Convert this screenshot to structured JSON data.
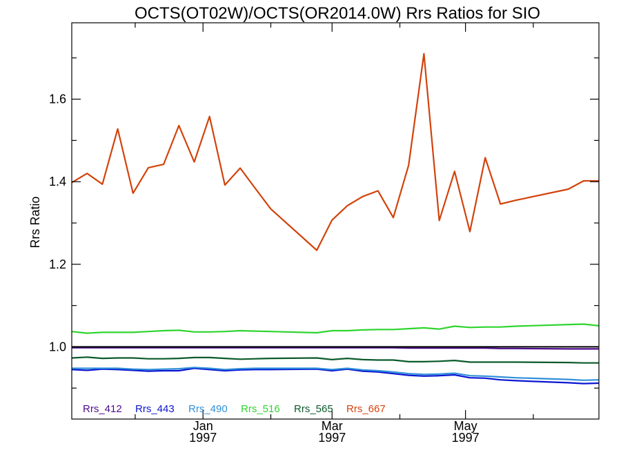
{
  "chart_data": {
    "type": "line",
    "title": "OCTS(OT02W)/OCTS(OR2014.0W)  Rrs Ratios for SIO",
    "ylabel": "Rrs Ratio",
    "xlabel": "",
    "xlim": [
      "1996-11-02",
      "1997-07-01"
    ],
    "ylim": [
      0.825,
      1.785
    ],
    "y_ticks": [
      1.0,
      1.2,
      1.4,
      1.6
    ],
    "y_tick_labels": [
      "1.0",
      "1.2",
      "1.4",
      "1.6"
    ],
    "x_ticks": [
      {
        "date": "1997-01-01",
        "month": "Jan",
        "year": "1997"
      },
      {
        "date": "1997-03-01",
        "month": "Mar",
        "year": "1997"
      },
      {
        "date": "1997-05-01",
        "month": "May",
        "year": "1997"
      }
    ],
    "x_minor_ticks": [
      "1996-12-01",
      "1997-02-01",
      "1997-04-01",
      "1997-06-01"
    ],
    "reference_line": 1.0,
    "legend_placement": "bottom-left",
    "grid": false,
    "x": [
      "1996-11-02",
      "1996-11-09",
      "1996-11-16",
      "1996-11-23",
      "1996-11-30",
      "1996-12-07",
      "1996-12-14",
      "1996-12-21",
      "1996-12-28",
      "1997-01-04",
      "1997-01-11",
      "1997-01-18",
      "1997-01-25",
      "1997-02-01",
      "1997-02-22",
      "1997-03-01",
      "1997-03-08",
      "1997-03-15",
      "1997-03-22",
      "1997-03-29",
      "1997-04-05",
      "1997-04-12",
      "1997-04-19",
      "1997-04-26",
      "1997-05-03",
      "1997-05-10",
      "1997-05-17",
      "1997-05-24",
      "1997-06-17",
      "1997-06-24",
      "1997-07-01"
    ],
    "series": [
      {
        "name": "Rrs_412",
        "color": "#4b0a8c",
        "values": [
          0.998,
          0.998,
          0.998,
          0.998,
          0.998,
          0.998,
          0.998,
          0.998,
          0.998,
          0.998,
          0.998,
          0.998,
          0.998,
          0.998,
          0.998,
          0.998,
          0.998,
          0.998,
          0.998,
          0.998,
          0.997,
          0.997,
          0.997,
          0.997,
          0.997,
          0.997,
          0.996,
          0.996,
          0.995,
          0.995,
          0.995
        ]
      },
      {
        "name": "Rrs_443",
        "color": "#0a14d2",
        "values": [
          0.945,
          0.943,
          0.946,
          0.945,
          0.943,
          0.941,
          0.942,
          0.942,
          0.948,
          0.945,
          0.942,
          0.944,
          0.945,
          0.945,
          0.946,
          0.942,
          0.946,
          0.941,
          0.939,
          0.935,
          0.931,
          0.929,
          0.93,
          0.932,
          0.925,
          0.924,
          0.92,
          0.918,
          0.913,
          0.911,
          0.912
        ]
      },
      {
        "name": "Rrs_490",
        "color": "#2f8fd8",
        "values": [
          0.948,
          0.948,
          0.948,
          0.948,
          0.946,
          0.945,
          0.946,
          0.947,
          0.95,
          0.948,
          0.945,
          0.947,
          0.948,
          0.948,
          0.948,
          0.945,
          0.948,
          0.944,
          0.942,
          0.939,
          0.935,
          0.933,
          0.934,
          0.936,
          0.93,
          0.929,
          0.927,
          0.925,
          0.921,
          0.919,
          0.92
        ]
      },
      {
        "name": "Rrs_516",
        "color": "#2ed42e",
        "values": [
          1.037,
          1.033,
          1.035,
          1.035,
          1.035,
          1.037,
          1.039,
          1.04,
          1.036,
          1.036,
          1.037,
          1.039,
          1.038,
          1.037,
          1.034,
          1.039,
          1.039,
          1.041,
          1.042,
          1.042,
          1.044,
          1.046,
          1.043,
          1.05,
          1.047,
          1.048,
          1.048,
          1.05,
          1.054,
          1.055,
          1.051
        ]
      },
      {
        "name": "Rrs_565",
        "color": "#0a5a2a",
        "values": [
          0.973,
          0.975,
          0.972,
          0.973,
          0.973,
          0.971,
          0.971,
          0.972,
          0.974,
          0.974,
          0.972,
          0.97,
          0.971,
          0.972,
          0.973,
          0.969,
          0.972,
          0.969,
          0.968,
          0.968,
          0.964,
          0.964,
          0.965,
          0.967,
          0.963,
          0.963,
          0.963,
          0.963,
          0.962,
          0.961,
          0.961
        ]
      },
      {
        "name": "Rrs_667",
        "color": "#d2420a",
        "values": [
          1.398,
          1.42,
          1.394,
          1.528,
          1.372,
          1.434,
          1.442,
          1.536,
          1.448,
          1.558,
          1.392,
          1.433,
          1.383,
          1.334,
          1.234,
          1.307,
          1.342,
          1.364,
          1.378,
          1.313,
          1.44,
          1.71,
          1.306,
          1.425,
          1.279,
          1.458,
          1.346,
          1.355,
          1.382,
          1.402,
          1.402
        ]
      }
    ]
  }
}
